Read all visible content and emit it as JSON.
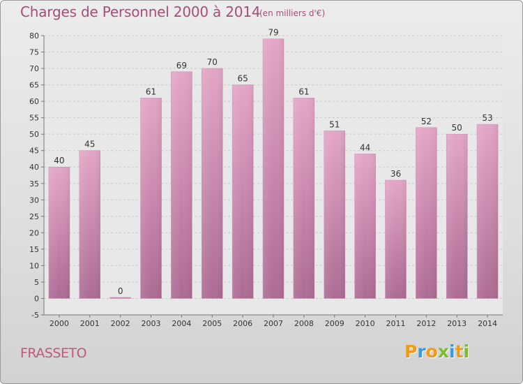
{
  "title": "Charges de Personnel 2000 à 2014",
  "subtitle": "(en milliers d'€)",
  "commune": "FRASSETO",
  "logo": {
    "text": "Proxiti",
    "letters": [
      {
        "ch": "P",
        "color": "#f29a1a"
      },
      {
        "ch": "r",
        "color": "#3a9ad9"
      },
      {
        "ch": "o",
        "color": "#f29a1a"
      },
      {
        "ch": "x",
        "color": "#7cbd2a"
      },
      {
        "ch": "i",
        "color": "#3a9ad9"
      },
      {
        "ch": "t",
        "color": "#f29a1a"
      },
      {
        "ch": "i",
        "color": "#7cbd2a"
      }
    ]
  },
  "chart_data": {
    "type": "bar",
    "title": "Charges de Personnel 2000 à 2014",
    "subtitle": "(en milliers d'€)",
    "categories": [
      "2000",
      "2001",
      "2002",
      "2003",
      "2004",
      "2005",
      "2006",
      "2007",
      "2008",
      "2009",
      "2010",
      "2011",
      "2012",
      "2013",
      "2014"
    ],
    "values": [
      40,
      45,
      0,
      61,
      69,
      70,
      65,
      79,
      61,
      51,
      44,
      36,
      52,
      50,
      53
    ],
    "ylim": [
      -5,
      80
    ],
    "yticks": [
      -5,
      0,
      5,
      10,
      15,
      20,
      25,
      30,
      35,
      40,
      45,
      50,
      55,
      60,
      65,
      70,
      75,
      80
    ],
    "grid": true,
    "bar_color": "#d98bb3",
    "bar_color_dark": "#b06a93",
    "xlabel": "",
    "ylabel": ""
  }
}
